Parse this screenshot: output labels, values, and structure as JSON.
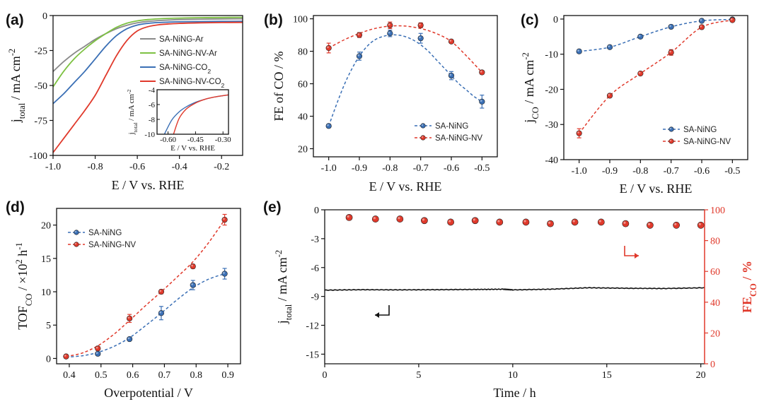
{
  "chart_data": [
    {
      "panel": "(a)",
      "type": "line",
      "xlabel": "E / V vs. RHE",
      "ylabel_main": "j",
      "ylabel_sub": "total",
      "ylabel_rest": " / mA cm",
      "ylabel_sup": "-2",
      "xlim": [
        -1.0,
        -0.1
      ],
      "ylim": [
        -100,
        0
      ],
      "xticks": [
        -1.0,
        -0.8,
        -0.6,
        -0.4,
        -0.2
      ],
      "xtick_labels": [
        "-1.0",
        "-0.8",
        "-0.6",
        "-0.4",
        "-0.2"
      ],
      "yticks": [
        0,
        -25,
        -50,
        -75,
        -100
      ],
      "ytick_labels": [
        "0",
        "-25",
        "-50",
        "-75",
        "-100"
      ],
      "series": [
        {
          "name": "SA-NiNG-Ar",
          "color": "#8a8a8a",
          "x": [
            -1.0,
            -0.95,
            -0.9,
            -0.85,
            -0.8,
            -0.75,
            -0.7,
            -0.65,
            -0.6,
            -0.55,
            -0.5,
            -0.45,
            -0.4,
            -0.3,
            -0.2,
            -0.1
          ],
          "y": [
            -40,
            -33,
            -27,
            -22,
            -17,
            -13,
            -9.5,
            -7,
            -5.2,
            -4.2,
            -3.6,
            -3.2,
            -2.9,
            -2.6,
            -2.4,
            -2.3
          ]
        },
        {
          "name": "SA-NiNG-NV-Ar",
          "color": "#7dc142",
          "x": [
            -1.0,
            -0.95,
            -0.9,
            -0.85,
            -0.8,
            -0.75,
            -0.7,
            -0.65,
            -0.6,
            -0.55,
            -0.5,
            -0.45,
            -0.4,
            -0.3,
            -0.2,
            -0.1
          ],
          "y": [
            -51,
            -40,
            -31,
            -24,
            -18,
            -13,
            -8.5,
            -5.5,
            -3.8,
            -2.9,
            -2.3,
            -2.0,
            -1.8,
            -1.5,
            -1.4,
            -1.3
          ]
        },
        {
          "name": "SA-NiNG-CO2",
          "color": "#3a6fb5",
          "x": [
            -1.0,
            -0.95,
            -0.9,
            -0.85,
            -0.8,
            -0.75,
            -0.7,
            -0.65,
            -0.6,
            -0.55,
            -0.5,
            -0.45,
            -0.4,
            -0.3,
            -0.2,
            -0.1
          ],
          "y": [
            -63,
            -56,
            -48,
            -40,
            -31,
            -22,
            -14.5,
            -9.5,
            -6.8,
            -5.6,
            -5.0,
            -4.7,
            -4.5,
            -4.3,
            -4.2,
            -4.1
          ]
        },
        {
          "name": "SA-NiNG-NV-CO2",
          "color": "#e0392b",
          "x": [
            -1.0,
            -0.95,
            -0.9,
            -0.85,
            -0.8,
            -0.75,
            -0.7,
            -0.65,
            -0.6,
            -0.55,
            -0.5,
            -0.45,
            -0.4,
            -0.3,
            -0.2,
            -0.1
          ],
          "y": [
            -98,
            -88,
            -78,
            -68,
            -57,
            -43,
            -29,
            -18,
            -11,
            -8,
            -6.6,
            -6.0,
            -5.6,
            -5.2,
            -5.0,
            -4.9
          ]
        }
      ],
      "legend": {
        "placement": "top-right",
        "entries": [
          {
            "main": "SA-NiNG-Ar",
            "sub": ""
          },
          {
            "main": "SA-NiNG-NV-Ar",
            "sub": ""
          },
          {
            "main": "SA-NiNG-CO",
            "sub": "2"
          },
          {
            "main": "SA-NiNG-NV-CO",
            "sub": "2"
          }
        ]
      },
      "inset": {
        "xlabel": "E / V vs. RHE",
        "ylabel_main": "j",
        "ylabel_sub": "total",
        "ylabel_rest": " / mA cm",
        "ylabel_sup": "-2",
        "xlim": [
          -0.66,
          -0.27
        ],
        "ylim": [
          -10,
          -4
        ],
        "xticks": [
          -0.6,
          -0.45,
          -0.3
        ],
        "xtick_labels": [
          "-0.60",
          "-0.45",
          "-0.30"
        ],
        "yticks": [
          -4,
          -6,
          -8,
          -10
        ],
        "ytick_labels": [
          "-4",
          "-6",
          "-8",
          "-10"
        ],
        "series": [
          {
            "name": "SA-NiNG-CO2",
            "color": "#3a6fb5",
            "x": [
              -0.62,
              -0.58,
              -0.54,
              -0.5,
              -0.45,
              -0.4,
              -0.35,
              -0.3,
              -0.27
            ],
            "y": [
              -10,
              -8.1,
              -7.0,
              -6.3,
              -5.7,
              -5.3,
              -5.0,
              -4.8,
              -4.7
            ]
          },
          {
            "name": "SA-NiNG-NV-CO2",
            "color": "#e0392b",
            "x": [
              -0.57,
              -0.54,
              -0.5,
              -0.45,
              -0.4,
              -0.35,
              -0.3,
              -0.27
            ],
            "y": [
              -10,
              -7.9,
              -6.6,
              -5.8,
              -5.3,
              -5.0,
              -4.8,
              -4.7
            ]
          }
        ]
      }
    },
    {
      "panel": "(b)",
      "type": "scatter",
      "xlabel": "E / V vs. RHE",
      "ylabel": "FE of CO / %",
      "xlim": [
        -1.05,
        -0.45
      ],
      "ylim": [
        15,
        102
      ],
      "xticks": [
        -1.0,
        -0.9,
        -0.8,
        -0.7,
        -0.6,
        -0.5
      ],
      "xtick_labels": [
        "-1.0",
        "-0.9",
        "-0.8",
        "-0.7",
        "-0.6",
        "-0.5"
      ],
      "yticks": [
        20,
        40,
        60,
        80,
        100
      ],
      "ytick_labels": [
        "20",
        "40",
        "60",
        "80",
        "100"
      ],
      "series": [
        {
          "name": "SA-NiNG",
          "color": "#3a6fb5",
          "x": [
            -1.0,
            -0.9,
            -0.8,
            -0.7,
            -0.6,
            -0.5
          ],
          "y": [
            34,
            77,
            91,
            88,
            65,
            49
          ],
          "err": [
            1,
            2.5,
            2,
            3,
            2.5,
            4
          ],
          "fit_x": [
            -1.0,
            -0.975,
            -0.95,
            -0.925,
            -0.9,
            -0.875,
            -0.85,
            -0.825,
            -0.8,
            -0.775,
            -0.75,
            -0.725,
            -0.7,
            -0.675,
            -0.65,
            -0.625,
            -0.6,
            -0.575,
            -0.55,
            -0.525,
            -0.5
          ],
          "fit_y": [
            34,
            47,
            59,
            69,
            77,
            83,
            87,
            89,
            90,
            90,
            89,
            87,
            84,
            80,
            75,
            70,
            65,
            60,
            56,
            52,
            49
          ]
        },
        {
          "name": "SA-NiNG-NV",
          "color": "#e0392b",
          "x": [
            -1.0,
            -0.9,
            -0.8,
            -0.7,
            -0.6,
            -0.5
          ],
          "y": [
            82,
            90,
            96,
            96,
            86,
            67
          ],
          "err": [
            3,
            1.5,
            2,
            1.5,
            1,
            1
          ],
          "fit_x": [
            -1.0,
            -0.95,
            -0.9,
            -0.85,
            -0.8,
            -0.75,
            -0.7,
            -0.65,
            -0.6,
            -0.55,
            -0.5
          ],
          "fit_y": [
            82,
            87,
            91,
            94,
            95.5,
            95.5,
            94,
            91,
            86,
            77,
            67
          ]
        }
      ],
      "legend": {
        "placement": "center-right",
        "entries": [
          "SA-NiNG",
          "SA-NiNG-NV"
        ]
      }
    },
    {
      "panel": "(c)",
      "type": "scatter",
      "xlabel": "E / V vs. RHE",
      "ylabel_main": "j",
      "ylabel_sub": "CO",
      "ylabel_rest": " / mA cm",
      "ylabel_sup": "-2",
      "xlim": [
        -1.05,
        -0.45
      ],
      "ylim": [
        -40,
        1
      ],
      "xticks": [
        -1.0,
        -0.9,
        -0.8,
        -0.7,
        -0.6,
        -0.5
      ],
      "xtick_labels": [
        "-1.0",
        "-0.9",
        "-0.8",
        "-0.7",
        "-0.6",
        "-0.5"
      ],
      "yticks": [
        0,
        -10,
        -20,
        -30,
        -40
      ],
      "ytick_labels": [
        "0",
        "-10",
        "-20",
        "-30",
        "-40"
      ],
      "series": [
        {
          "name": "SA-NiNG",
          "color": "#3a6fb5",
          "x": [
            -1.0,
            -0.9,
            -0.8,
            -0.7,
            -0.6,
            -0.5
          ],
          "y": [
            -9.2,
            -8.0,
            -5.0,
            -2.2,
            -0.5,
            -0.1
          ],
          "err": [
            0.5,
            0.4,
            0.4,
            0.3,
            0.2,
            0.1
          ]
        },
        {
          "name": "SA-NiNG-NV",
          "color": "#e0392b",
          "x": [
            -1.0,
            -0.9,
            -0.8,
            -0.7,
            -0.6,
            -0.5
          ],
          "y": [
            -32.5,
            -21.8,
            -15.5,
            -9.5,
            -2.3,
            -0.3
          ],
          "err": [
            1.3,
            0.3,
            0.3,
            0.8,
            0.3,
            0.2
          ]
        }
      ],
      "legend": {
        "placement": "center-right",
        "entries": [
          "SA-NiNG",
          "SA-NiNG-NV"
        ]
      }
    },
    {
      "panel": "(d)",
      "type": "scatter",
      "xlabel": "Overpotential / V",
      "ylabel_main": "TOF",
      "ylabel_sub": "CO",
      "ylabel_rest": " / ×10",
      "ylabel_sup": "2",
      "ylabel_tail": " h",
      "ylabel_tail_sup": "-1",
      "xlim": [
        0.36,
        0.94
      ],
      "ylim": [
        -0.8,
        22.5
      ],
      "xticks": [
        0.4,
        0.5,
        0.6,
        0.7,
        0.8,
        0.9
      ],
      "xtick_labels": [
        "0.4",
        "0.5",
        "0.6",
        "0.7",
        "0.8",
        "0.9"
      ],
      "yticks": [
        0,
        5,
        10,
        15,
        20
      ],
      "ytick_labels": [
        "0",
        "5",
        "10",
        "15",
        "20"
      ],
      "series": [
        {
          "name": "SA-NiNG",
          "color": "#3a6fb5",
          "x": [
            0.39,
            0.49,
            0.59,
            0.69,
            0.79,
            0.89
          ],
          "y": [
            0.3,
            0.7,
            2.9,
            6.8,
            11.0,
            12.7
          ],
          "err": [
            0.2,
            0.2,
            0.2,
            1.0,
            0.7,
            0.8
          ],
          "fit_x": [
            0.39,
            0.44,
            0.49,
            0.54,
            0.59,
            0.64,
            0.69,
            0.74,
            0.79,
            0.84,
            0.89
          ],
          "fit_y": [
            0.2,
            0.4,
            0.9,
            1.8,
            3.1,
            4.9,
            6.8,
            8.8,
            10.6,
            11.9,
            12.7
          ]
        },
        {
          "name": "SA-NiNG-NV",
          "color": "#e0392b",
          "x": [
            0.39,
            0.49,
            0.59,
            0.69,
            0.79,
            0.89
          ],
          "y": [
            0.3,
            1.5,
            6.0,
            10.0,
            13.8,
            20.8
          ],
          "err": [
            0.2,
            0.3,
            0.6,
            0.3,
            0.3,
            0.8
          ],
          "fit_x": [
            0.39,
            0.44,
            0.49,
            0.54,
            0.59,
            0.64,
            0.69,
            0.74,
            0.79,
            0.84,
            0.89
          ],
          "fit_y": [
            0.3,
            0.8,
            1.9,
            3.6,
            5.7,
            7.9,
            10.0,
            12.2,
            14.5,
            17.4,
            20.8
          ]
        }
      ],
      "legend": {
        "placement": "top-left",
        "entries": [
          "SA-NiNG",
          "SA-NiNG-NV"
        ]
      }
    },
    {
      "panel": "(e)",
      "type": "line",
      "xlabel": "Time / h",
      "ylabel_main": "j",
      "ylabel_sub": "total",
      "ylabel_rest": " / mA cm",
      "ylabel_sup": "-2",
      "y2label_main": "FE",
      "y2label_sub": "CO",
      "y2label_rest": " / %",
      "xlim": [
        0,
        20.2
      ],
      "ylim": [
        -16,
        0
      ],
      "y2lim": [
        0,
        100
      ],
      "xticks": [
        0,
        5,
        10,
        15,
        20
      ],
      "xtick_labels": [
        "0",
        "5",
        "10",
        "15",
        "20"
      ],
      "yticks": [
        0,
        -3,
        -6,
        -9,
        -12,
        -15
      ],
      "ytick_labels": [
        "0",
        "-3",
        "-6",
        "-9",
        "-12",
        "-15"
      ],
      "y2ticks": [
        0,
        20,
        40,
        60,
        80,
        100
      ],
      "y2tick_labels": [
        "0",
        "20",
        "40",
        "60",
        "80",
        "100"
      ],
      "current": {
        "color": "#111111",
        "x": [
          0,
          2,
          4,
          6,
          8,
          9.5,
          10,
          12,
          14,
          16,
          18,
          20.2
        ],
        "y": [
          -8.35,
          -8.3,
          -8.32,
          -8.3,
          -8.28,
          -8.25,
          -8.32,
          -8.25,
          -8.1,
          -8.15,
          -8.18,
          -8.1
        ]
      },
      "fe": {
        "color": "#e0392b",
        "x": [
          1.3,
          2.7,
          4.0,
          5.3,
          6.7,
          8.0,
          9.3,
          10.7,
          12.0,
          13.3,
          14.7,
          16.0,
          17.3,
          18.7,
          20.0
        ],
        "y": [
          95,
          94,
          94,
          93,
          92,
          93,
          92,
          92,
          91,
          92,
          92,
          91,
          90,
          90,
          90
        ]
      }
    }
  ]
}
